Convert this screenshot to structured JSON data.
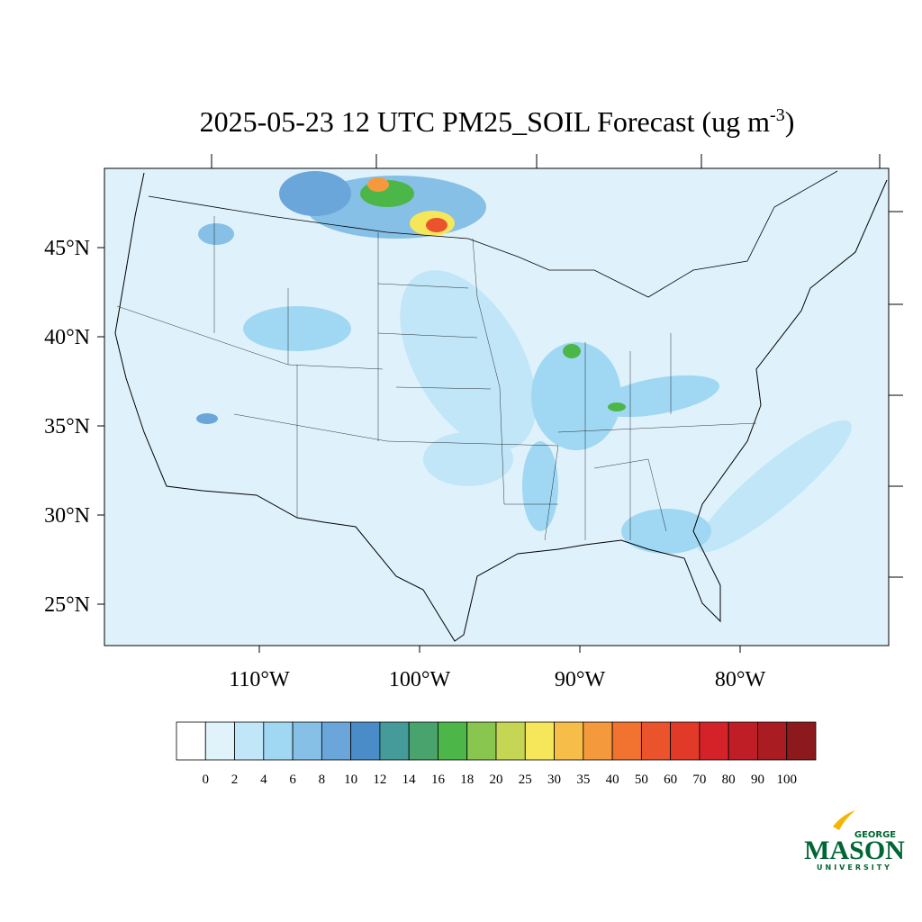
{
  "title": {
    "text": "2025-05-23 12 UTC PM25_SOIL Forecast (ug m",
    "superscript": "-3",
    "suffix": ")"
  },
  "map": {
    "lat_labels": [
      "45°N",
      "40°N",
      "35°N",
      "30°N",
      "25°N"
    ],
    "lon_labels": [
      "110°W",
      "100°W",
      "90°W",
      "80°W"
    ]
  },
  "legend": {
    "levels": [
      0,
      2,
      4,
      6,
      8,
      10,
      12,
      14,
      16,
      18,
      20,
      25,
      30,
      35,
      40,
      50,
      60,
      70,
      80,
      90,
      100
    ],
    "colors": [
      "#ffffff",
      "#e0f3fb",
      "#c0e6f7",
      "#a0d8f3",
      "#86c0e6",
      "#6aa6da",
      "#4a8cc8",
      "#459a9a",
      "#48a46c",
      "#4cb648",
      "#88c650",
      "#c5d655",
      "#f6e65a",
      "#f6be48",
      "#f59a3c",
      "#f2722f",
      "#ea532b",
      "#e23a28",
      "#d42228",
      "#c01e26",
      "#a81c22",
      "#8c1a1c"
    ]
  },
  "logo": {
    "top": "GEORGE",
    "main": "MASON",
    "bottom": "UNIVERSITY"
  }
}
